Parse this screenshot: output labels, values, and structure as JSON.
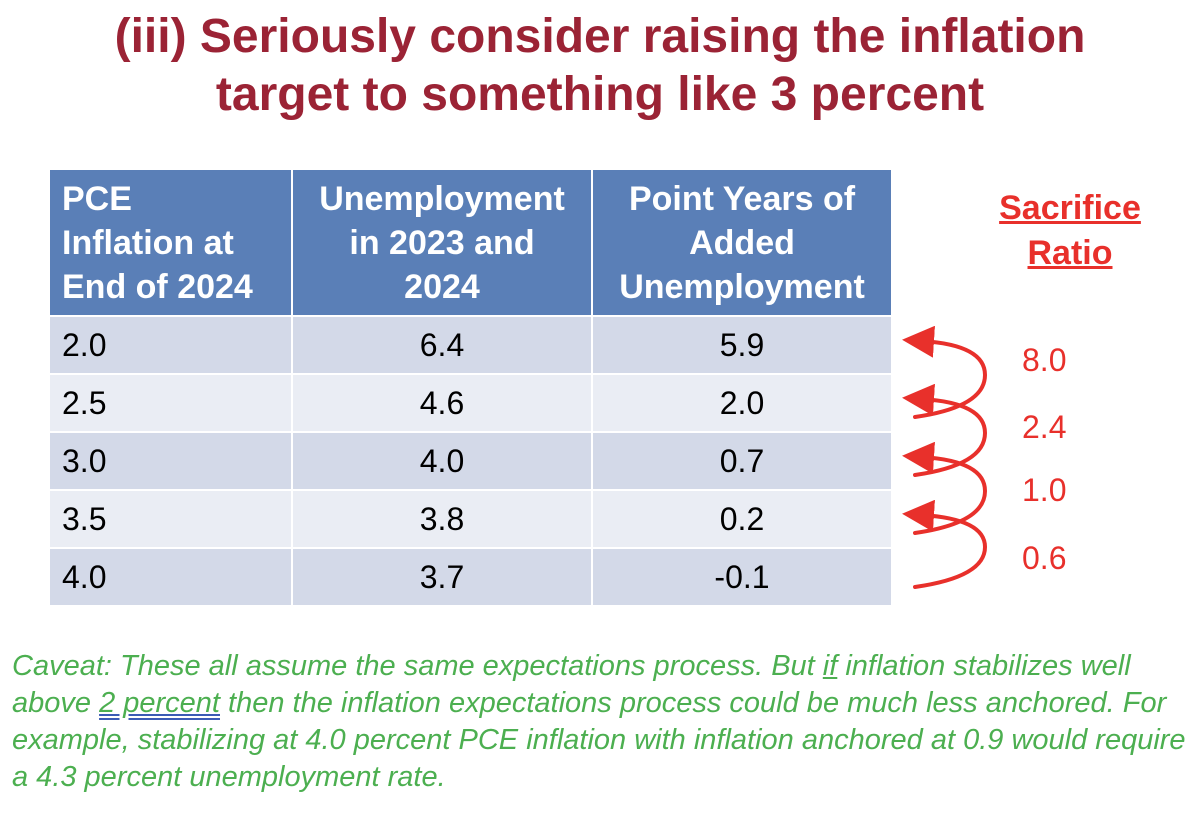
{
  "title": {
    "line1": "(iii) Seriously consider raising the inflation",
    "line2": "target to something like 3 percent"
  },
  "table": {
    "headers": [
      [
        "PCE",
        "Inflation at",
        "End of 2024"
      ],
      [
        "Unemployment",
        "in 2023 and",
        "2024"
      ],
      [
        "Point Years of",
        "Added",
        "Unemployment"
      ]
    ],
    "rows": [
      [
        "2.0",
        "6.4",
        "5.9"
      ],
      [
        "2.5",
        "4.6",
        "2.0"
      ],
      [
        "3.0",
        "4.0",
        "0.7"
      ],
      [
        "3.5",
        "3.8",
        "0.2"
      ],
      [
        "4.0",
        "3.7",
        "-0.1"
      ]
    ]
  },
  "sacrifice_ratio": {
    "title_line1": "Sacrifice",
    "title_line2": "Ratio",
    "values": [
      "8.0",
      "2.4",
      "1.0",
      "0.6"
    ],
    "arrow_color": "#e8302b"
  },
  "caveat": {
    "part1": "Caveat: These all assume the same expectations process. But ",
    "if_word": "if",
    "part2": " inflation stabilizes well above ",
    "two_percent": "2 percent",
    "part3": " then the inflation expectations process could be much less anchored. For example, stabilizing at 4.0 percent PCE inflation with inflation anchored at 0.9 would require a 4.3 percent unemployment rate."
  },
  "colors": {
    "title": "#9b2335",
    "header_bg": "#5a7fb7",
    "row_odd": "#d3d9e8",
    "row_even": "#eaedf4",
    "sacrifice": "#e8302b",
    "caveat": "#4caf50"
  }
}
